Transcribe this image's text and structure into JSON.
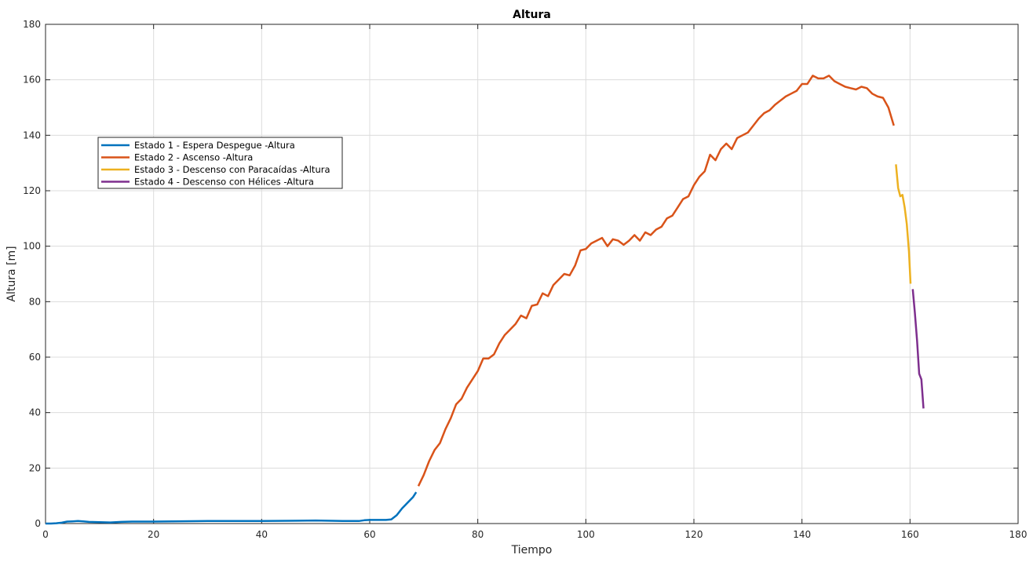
{
  "chart_data": {
    "type": "line",
    "title": "Altura",
    "xlabel": "Tiempo",
    "ylabel": "Altura [m]",
    "xlim": [
      0,
      180
    ],
    "ylim": [
      0,
      180
    ],
    "xticks": [
      0,
      20,
      40,
      60,
      80,
      100,
      120,
      140,
      160,
      180
    ],
    "yticks": [
      0,
      20,
      40,
      60,
      80,
      100,
      120,
      140,
      160,
      180
    ],
    "grid": true,
    "legend_position": "upper-left",
    "series": [
      {
        "name": "Estado 1 - Espera Despegue -Altura",
        "color": "#0072BD",
        "x": [
          0,
          1,
          2,
          3,
          4,
          5,
          6,
          7,
          8,
          10,
          12,
          14,
          16,
          20,
          30,
          40,
          45,
          50,
          55,
          58,
          59,
          60,
          61,
          62,
          63,
          64,
          65,
          66,
          67,
          68,
          68.6
        ],
        "y": [
          0,
          0,
          0.1,
          0.3,
          0.7,
          0.8,
          0.9,
          0.8,
          0.6,
          0.5,
          0.4,
          0.6,
          0.7,
          0.7,
          0.9,
          0.9,
          1.0,
          1.1,
          0.9,
          0.9,
          1.2,
          1.3,
          1.3,
          1.3,
          1.3,
          1.5,
          3,
          5.5,
          7.5,
          9.5,
          11.3
        ]
      },
      {
        "name": "Estado 2 - Ascenso -Altura",
        "color": "#D95319",
        "x": [
          69,
          70,
          71,
          72,
          73,
          74,
          75,
          76,
          77,
          78,
          79,
          80,
          81,
          82,
          83,
          84,
          85,
          86,
          87,
          88,
          89,
          90,
          91,
          92,
          93,
          94,
          95,
          96,
          97,
          98,
          99,
          100,
          101,
          102,
          103,
          104,
          105,
          106,
          107,
          108,
          109,
          110,
          111,
          112,
          113,
          114,
          115,
          116,
          117,
          118,
          119,
          120,
          121,
          122,
          123,
          124,
          125,
          126,
          127,
          128,
          129,
          130,
          131,
          132,
          133,
          134,
          135,
          136,
          137,
          138,
          139,
          140,
          141,
          142,
          143,
          144,
          145,
          146,
          147,
          148,
          149,
          150,
          151,
          152,
          153,
          154,
          155,
          156,
          157
        ],
        "y": [
          13.5,
          17.5,
          22.5,
          26.5,
          29,
          34,
          38,
          43,
          45,
          49,
          52,
          55,
          59.5,
          59.5,
          61,
          65,
          68,
          70,
          72,
          75,
          74,
          78.5,
          79,
          83,
          82,
          86,
          88,
          90,
          89.5,
          93,
          98.5,
          99,
          101,
          102,
          103,
          100,
          102.5,
          102,
          100.5,
          102,
          104,
          102,
          105,
          104,
          106,
          107,
          110,
          111,
          114,
          117,
          118,
          122,
          125,
          127,
          133,
          131,
          135,
          137,
          135,
          139,
          140,
          141,
          143.5,
          146,
          148,
          149,
          151,
          152.5,
          154,
          155,
          156,
          158.5,
          158.5,
          161.5,
          160.5,
          160.5,
          161.5,
          159.5,
          158.5,
          157.5,
          157,
          156.5,
          157.5,
          157,
          155,
          154,
          153.5,
          150,
          143.5
        ]
      },
      {
        "name": "Estado 3 - Descenso con Paracaídas -Altura",
        "color": "#EDB120",
        "x": [
          157.4,
          157.8,
          158.2,
          158.6,
          159.0,
          159.4,
          159.8,
          160.1
        ],
        "y": [
          129.5,
          121,
          118,
          118.5,
          114,
          108,
          98,
          86.5
        ]
      },
      {
        "name": "Estado 4 - Descenso con Hélices -Altura",
        "color": "#7E2F8E",
        "x": [
          160.5,
          160.9,
          161.3,
          161.7,
          162.1,
          162.5
        ],
        "y": [
          84.5,
          76,
          66,
          54,
          52,
          41.5
        ]
      }
    ]
  }
}
